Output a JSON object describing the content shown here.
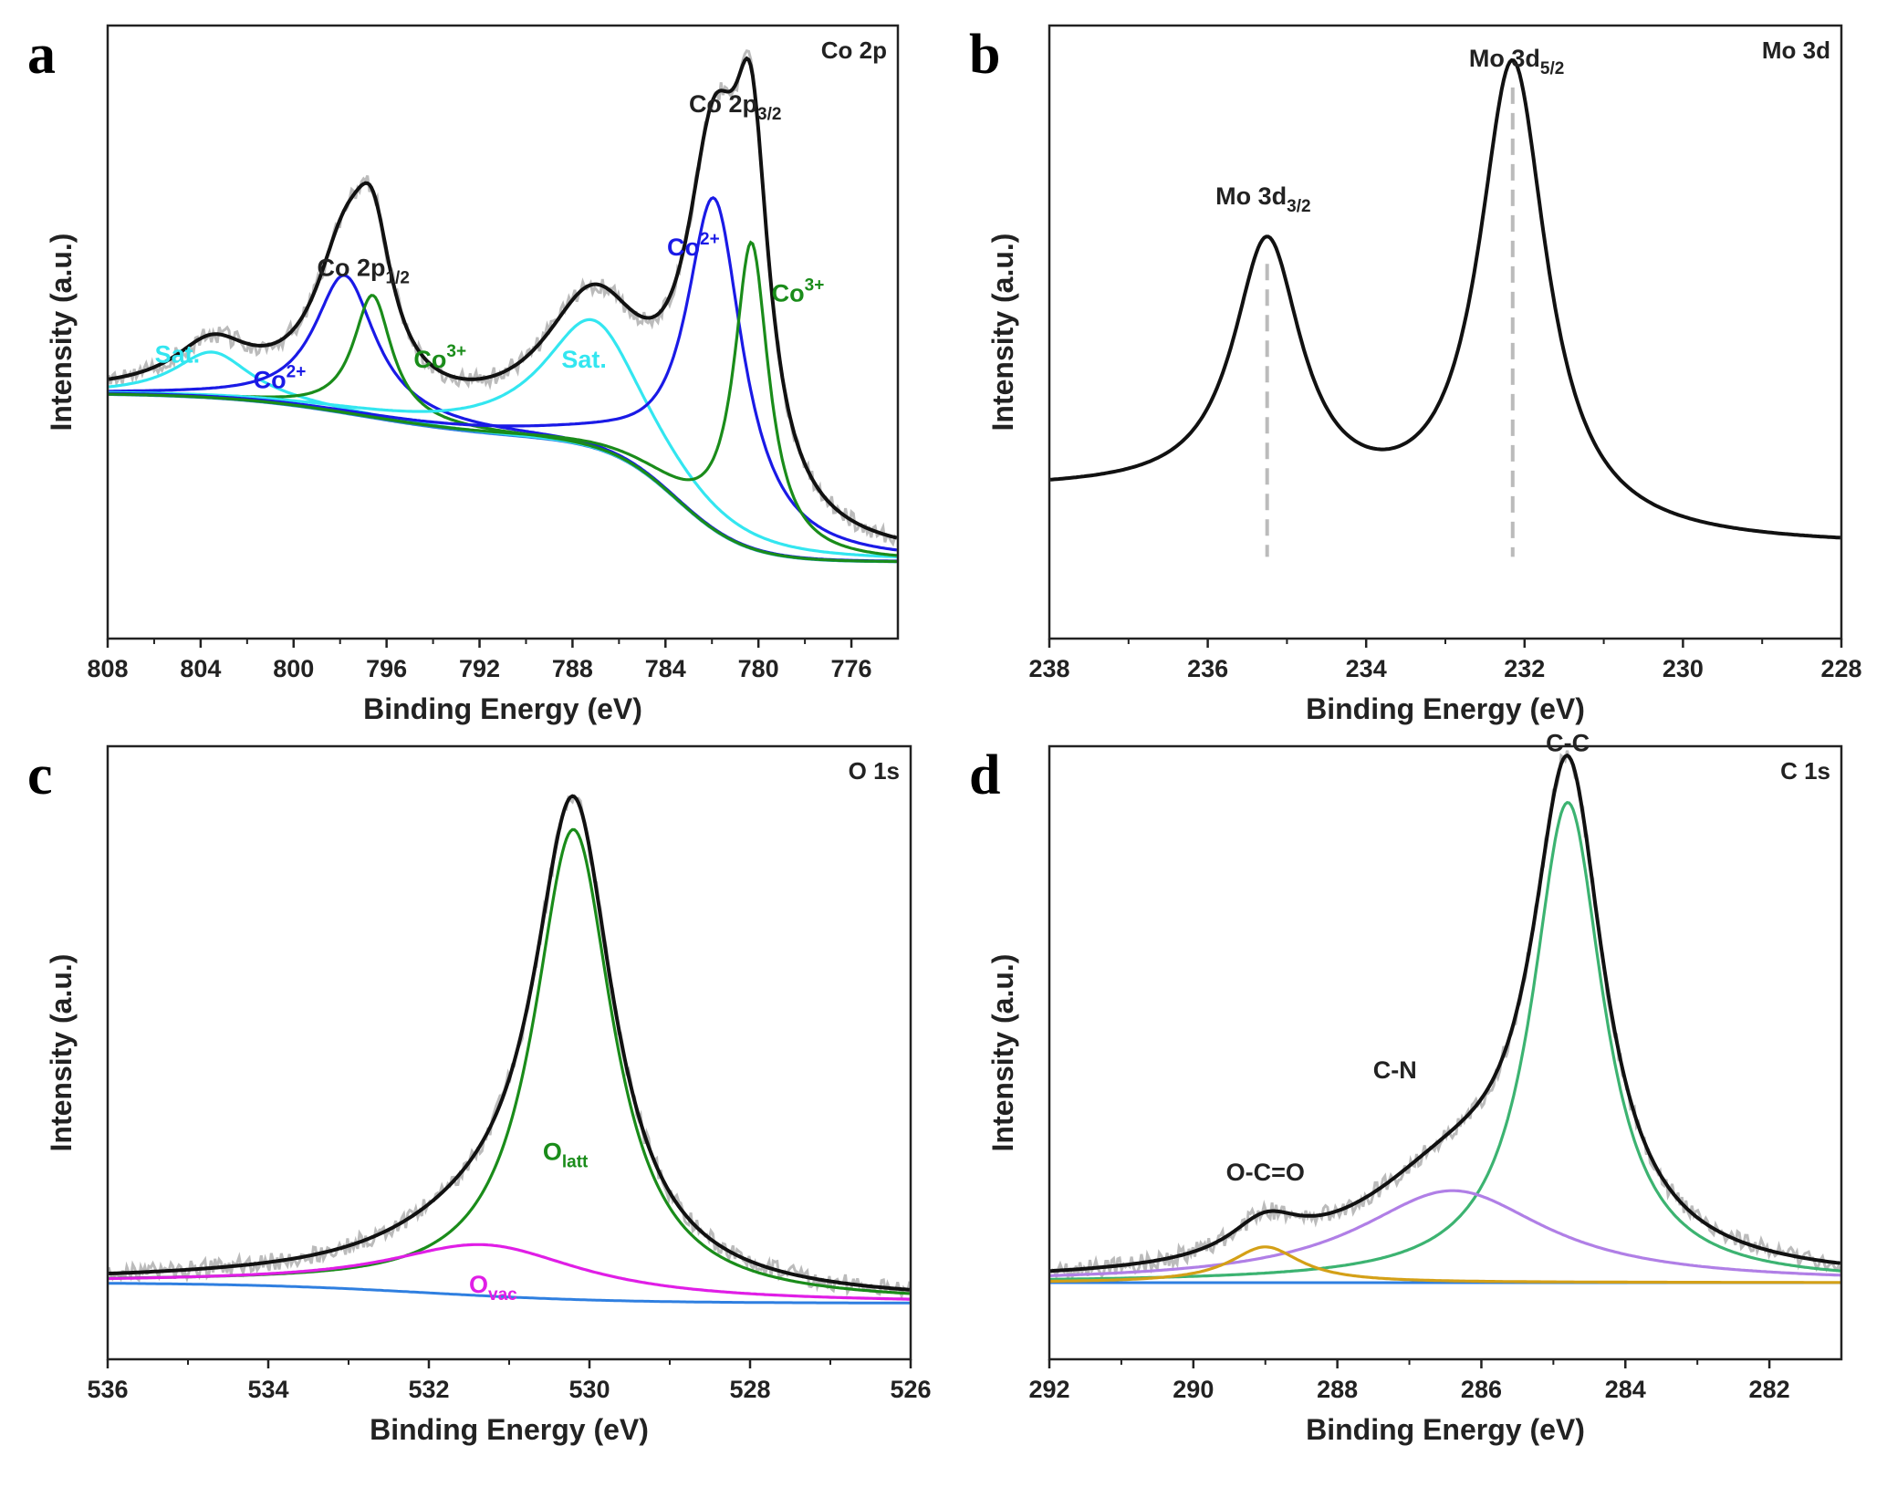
{
  "chart_data": [
    {
      "type": "line",
      "panel_label": "a",
      "corner_label": "Co 2p",
      "xlabel": "Binding Energy (eV)",
      "ylabel": "Intensity (a.u.)",
      "xlim": [
        808,
        774
      ],
      "ylim": [
        -0.15,
        1.05
      ],
      "xticks": [
        "808",
        "804",
        "800",
        "796",
        "792",
        "788",
        "784",
        "780",
        "776"
      ],
      "tick_values": [
        808,
        804,
        800,
        796,
        792,
        788,
        784,
        780,
        776
      ],
      "annotations": [
        {
          "text": "Co 2p",
          "sub": "1/2",
          "sup": "",
          "x": 797,
          "y": 0.56,
          "color": "#222222"
        },
        {
          "text": "Co 2p",
          "sub": "3/2",
          "sup": "",
          "x": 781,
          "y": 0.88,
          "color": "#222222"
        },
        {
          "text": "Sat.",
          "sub": "",
          "sup": "",
          "x": 805,
          "y": 0.39,
          "color": "#33e6f0"
        },
        {
          "text": "Sat.",
          "sub": "",
          "sup": "",
          "x": 787.5,
          "y": 0.38,
          "color": "#33e6f0"
        },
        {
          "text": "Co",
          "sub": "",
          "sup": "2+",
          "x": 800.6,
          "y": 0.34,
          "color": "#1a1ae6"
        },
        {
          "text": "Co",
          "sub": "",
          "sup": "3+",
          "x": 793.7,
          "y": 0.38,
          "color": "#1a8c1a"
        },
        {
          "text": "Co",
          "sub": "",
          "sup": "2+",
          "x": 782.8,
          "y": 0.6,
          "color": "#1a1ae6"
        },
        {
          "text": "Co",
          "sub": "",
          "sup": "3+",
          "x": 778.3,
          "y": 0.51,
          "color": "#1a8c1a"
        }
      ],
      "background": {
        "hi_x": 805.5,
        "hi_y": 0.33,
        "lo_x": 788,
        "lo_y": 0.24,
        "end_y": 0.0
      },
      "peaks": [
        {
          "name": "Sat. (Co 2p1/2)",
          "center": 803.5,
          "height": 0.09,
          "width": 2.0,
          "color": "#33e6f0"
        },
        {
          "name": "Co2+ (Co 2p1/2)",
          "center": 797.8,
          "height": 0.27,
          "width": 1.6,
          "color": "#1a1ae6"
        },
        {
          "name": "Co3+ (Co 2p1/2)",
          "center": 796.6,
          "height": 0.24,
          "width": 1.0,
          "color": "#1a8c1a"
        },
        {
          "name": "Sat. (Co 2p3/2)",
          "center": 787.1,
          "height": 0.25,
          "width": 2.6,
          "color": "#33e6f0"
        },
        {
          "name": "Co2+ (Co 2p3/2)",
          "center": 781.9,
          "height": 0.65,
          "width": 1.5,
          "color": "#1a1ae6"
        },
        {
          "name": "Co3+ (Co 2p3/2)",
          "center": 780.3,
          "height": 0.6,
          "width": 0.9,
          "color": "#1a8c1a"
        }
      ],
      "envelope_color": "#111111",
      "raw_color": "#bbbbbb"
    },
    {
      "type": "line",
      "panel_label": "b",
      "corner_label": "Mo 3d",
      "xlabel": "Binding Energy (eV)",
      "ylabel": "Intensity (a.u.)",
      "xlim": [
        238,
        228
      ],
      "ylim": [
        -0.15,
        1.05
      ],
      "xticks": [
        "238",
        "236",
        "234",
        "232",
        "230",
        "228"
      ],
      "tick_values": [
        238,
        236,
        234,
        232,
        230,
        228
      ],
      "annotations": [
        {
          "text": "Mo 3d",
          "sub": "3/2",
          "sup": "",
          "x": 235.3,
          "y": 0.7,
          "color": "#222222"
        },
        {
          "text": "Mo 3d",
          "sub": "5/2",
          "sup": "",
          "x": 232.1,
          "y": 0.97,
          "color": "#222222"
        }
      ],
      "background": {
        "hi_x": 237.5,
        "hi_y": 0.14,
        "lo_x": 230.5,
        "lo_y": 0.03,
        "end_y": 0.03
      },
      "peaks": [
        {
          "name": "Mo 3d3/2",
          "center": 235.25,
          "height": 0.5,
          "width": 0.52,
          "color": "#111111"
        },
        {
          "name": "Mo 3d5/2",
          "center": 232.15,
          "height": 0.92,
          "width": 0.52,
          "color": "#111111"
        }
      ],
      "reference_lines": [
        235.25,
        232.15
      ],
      "show_components": false,
      "envelope_color": "#111111",
      "raw_color": ""
    },
    {
      "type": "line",
      "panel_label": "c",
      "corner_label": "O 1s",
      "xlabel": "Binding Energy (eV)",
      "ylabel": "Intensity (a.u.)",
      "xlim": [
        536,
        526
      ],
      "ylim": [
        -0.15,
        1.05
      ],
      "xticks": [
        "536",
        "534",
        "532",
        "530",
        "528",
        "526"
      ],
      "tick_values": [
        536,
        534,
        532,
        530,
        528,
        526
      ],
      "annotations": [
        {
          "text": "O",
          "sub": "latt",
          "sup": "",
          "x": 530.3,
          "y": 0.24,
          "color": "#1a8c1a"
        },
        {
          "text": "O",
          "sub": "vac",
          "sup": "",
          "x": 531.2,
          "y": -0.02,
          "color": "#e01ee6"
        }
      ],
      "background": {
        "hi_x": 535.5,
        "hi_y": 0.0,
        "lo_x": 528.5,
        "lo_y": -0.04,
        "end_y": -0.04
      },
      "peaks": [
        {
          "name": "O latt",
          "center": 530.2,
          "height": 0.92,
          "width": 0.6,
          "color": "#1a8c1a"
        },
        {
          "name": "O vac",
          "center": 531.3,
          "height": 0.1,
          "width": 1.5,
          "color": "#e01ee6"
        }
      ],
      "envelope_color": "#111111",
      "raw_color": "#bbbbbb"
    },
    {
      "type": "line",
      "panel_label": "d",
      "corner_label": "C 1s",
      "xlabel": "Binding Energy (eV)",
      "ylabel": "Intensity (a.u.)",
      "xlim": [
        292,
        281
      ],
      "ylim": [
        -0.15,
        1.05
      ],
      "xticks": [
        "292",
        "290",
        "288",
        "286",
        "284",
        "282"
      ],
      "tick_values": [
        292,
        290,
        288,
        286,
        284,
        282
      ],
      "annotations": [
        {
          "text": "C-C",
          "sub": "",
          "sup": "",
          "x": 284.8,
          "y": 1.04,
          "color": "#222222"
        },
        {
          "text": "C-N",
          "sub": "",
          "sup": "",
          "x": 287.2,
          "y": 0.4,
          "color": "#222222"
        },
        {
          "text": "O-C=O",
          "sub": "",
          "sup": "",
          "x": 289.0,
          "y": 0.2,
          "color": "#222222"
        }
      ],
      "background": {
        "hi_x": 291.5,
        "hi_y": 0.0,
        "lo_x": 281.0,
        "lo_y": 0.0,
        "end_y": 0.0
      },
      "peaks": [
        {
          "name": "C-C",
          "center": 284.8,
          "height": 0.94,
          "width": 0.6,
          "color": "#3cb371"
        },
        {
          "name": "C-N",
          "center": 286.4,
          "height": 0.18,
          "width": 1.6,
          "color": "#b07fe6"
        },
        {
          "name": "O-C=O",
          "center": 289.0,
          "height": 0.07,
          "width": 0.6,
          "color": "#d4a017"
        }
      ],
      "envelope_color": "#111111",
      "raw_color": "#bbbbbb"
    }
  ]
}
